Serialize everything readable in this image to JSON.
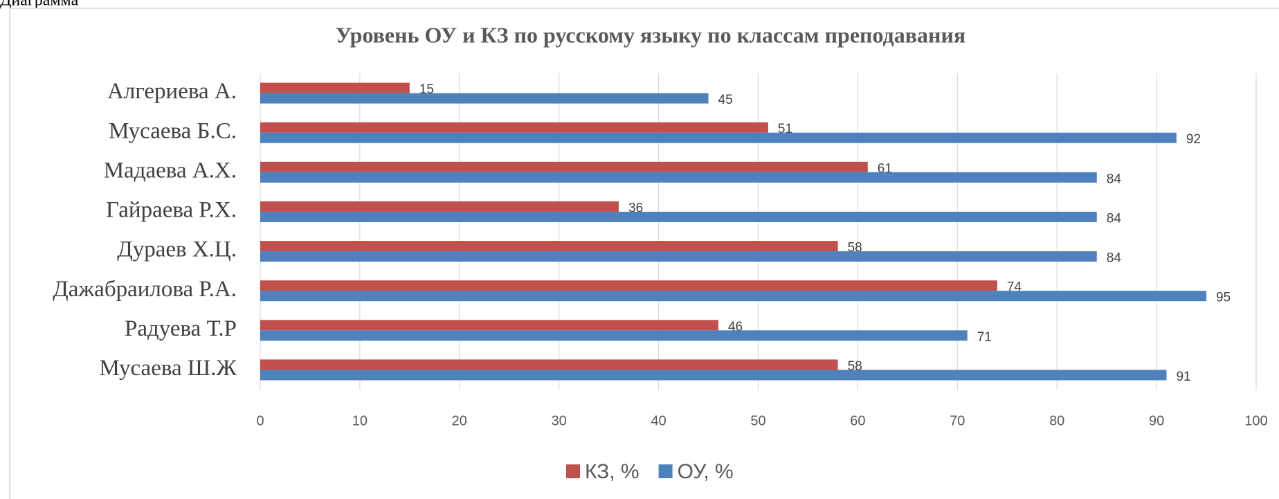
{
  "caption": "Диаграмма",
  "chart_data": {
    "type": "hbar",
    "title": "Уровень ОУ и КЗ по русскому языку по классам преподавания",
    "categories": [
      "Алгериева А.",
      "Мусаева Б.С.",
      "Мадаева А.Х.",
      "Гайраева Р.Х.",
      "Дураев Х.Ц.",
      "Дажабраилова Р.А.",
      "Радуева Т.Р",
      "Мусаева Ш.Ж"
    ],
    "series": [
      {
        "name": "КЗ, %",
        "color": "#c0504d",
        "values": [
          15,
          51,
          61,
          36,
          58,
          74,
          46,
          58
        ]
      },
      {
        "name": "ОУ, %",
        "color": "#4f81bd",
        "values": [
          45,
          92,
          84,
          84,
          84,
          95,
          71,
          91
        ]
      }
    ],
    "xlim": [
      0,
      100
    ],
    "xticks": [
      0,
      10,
      20,
      30,
      40,
      50,
      60,
      70,
      80,
      90,
      100
    ],
    "grid": true,
    "legend": "bottom"
  }
}
